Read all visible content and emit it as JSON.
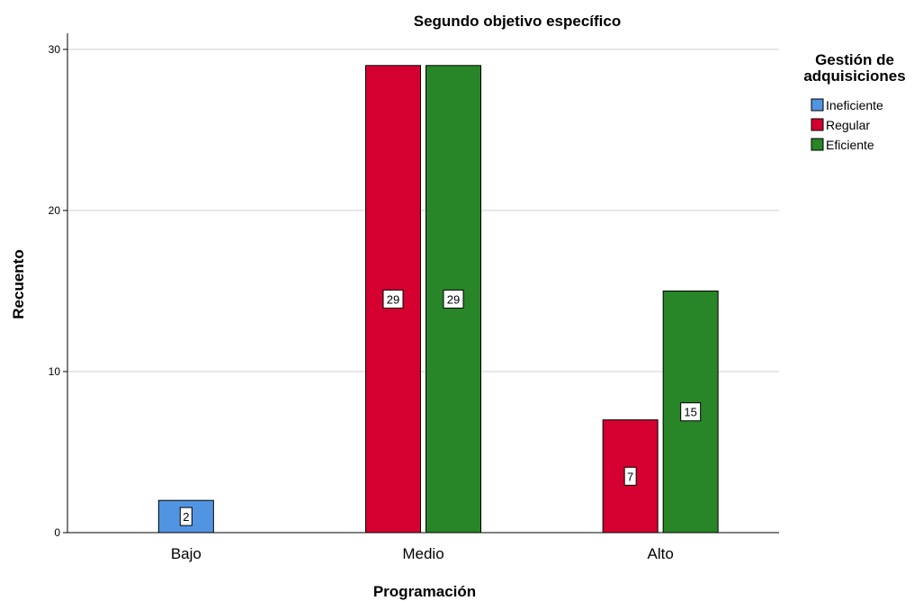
{
  "chart_data": {
    "type": "bar",
    "title": "Segundo objetivo específico",
    "xlabel": "Programación",
    "ylabel": "Recuento",
    "categories": [
      "Bajo",
      "Medio",
      "Alto"
    ],
    "series": [
      {
        "name": "Ineficiente",
        "color": "#5195e2",
        "values": [
          2,
          0,
          0
        ]
      },
      {
        "name": "Regular",
        "color": "#d40030",
        "values": [
          0,
          29,
          7
        ]
      },
      {
        "name": "Eficiente",
        "color": "#288528",
        "values": [
          0,
          29,
          15
        ]
      }
    ],
    "ylim": [
      0,
      31
    ],
    "yticks": [
      0,
      10,
      20,
      30
    ],
    "grid": true,
    "legend_title_lines": [
      "Gestión de",
      "adquisiciones"
    ],
    "legend_position": "top-right"
  }
}
